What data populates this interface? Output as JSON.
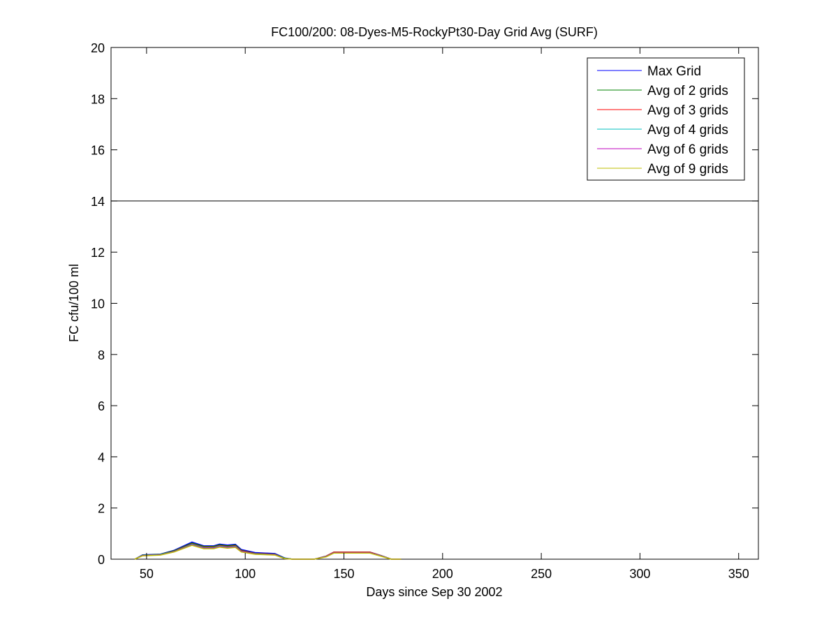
{
  "chart_data": {
    "type": "line",
    "title": "FC100/200: 08-Dyes-M5-RockyPt30-Day Grid Avg (SURF)",
    "xlabel": "Days since Sep 30 2002",
    "ylabel": "FC cfu/100 ml",
    "xlim": [
      32,
      360
    ],
    "ylim": [
      0,
      20
    ],
    "xticks": [
      50,
      100,
      150,
      200,
      250,
      300,
      350
    ],
    "yticks": [
      0,
      2,
      4,
      6,
      8,
      10,
      12,
      14,
      16,
      18,
      20
    ],
    "grid": false,
    "legend_position": "top-right",
    "reference_line": {
      "y": 14,
      "color": "#000000"
    },
    "x": [
      44,
      48,
      57,
      64,
      73,
      79,
      84,
      87,
      91,
      95,
      98,
      105,
      115,
      120,
      124,
      135,
      141,
      145,
      163,
      169,
      174,
      179
    ],
    "series": [
      {
        "name": "Max Grid",
        "color": "#0000ff",
        "values": [
          0,
          0.17,
          0.2,
          0.35,
          0.67,
          0.52,
          0.52,
          0.59,
          0.55,
          0.58,
          0.38,
          0.26,
          0.22,
          0.05,
          0,
          0,
          0.12,
          0.28,
          0.28,
          0.14,
          0,
          0
        ]
      },
      {
        "name": "Avg of 2 grids",
        "color": "#008000",
        "values": [
          0,
          0.16,
          0.19,
          0.33,
          0.63,
          0.5,
          0.5,
          0.56,
          0.52,
          0.55,
          0.35,
          0.23,
          0.2,
          0.04,
          0,
          0,
          0.12,
          0.28,
          0.28,
          0.14,
          0,
          0
        ]
      },
      {
        "name": "Avg of 3 grids",
        "color": "#ff0000",
        "values": [
          0,
          0.15,
          0.18,
          0.31,
          0.6,
          0.47,
          0.47,
          0.53,
          0.49,
          0.52,
          0.33,
          0.22,
          0.19,
          0.03,
          0,
          0,
          0.12,
          0.28,
          0.28,
          0.14,
          0,
          0
        ]
      },
      {
        "name": "Avg of 4 grids",
        "color": "#00bfbf",
        "values": [
          0,
          0.15,
          0.18,
          0.3,
          0.58,
          0.45,
          0.45,
          0.51,
          0.47,
          0.5,
          0.31,
          0.21,
          0.18,
          0.03,
          0,
          0,
          0.11,
          0.26,
          0.26,
          0.13,
          0,
          0
        ]
      },
      {
        "name": "Avg of 6 grids",
        "color": "#bf00bf",
        "values": [
          0,
          0.14,
          0.17,
          0.29,
          0.56,
          0.43,
          0.43,
          0.49,
          0.45,
          0.48,
          0.3,
          0.2,
          0.17,
          0.02,
          0,
          0,
          0.1,
          0.25,
          0.25,
          0.12,
          0,
          0
        ]
      },
      {
        "name": "Avg of 9 grids",
        "color": "#bfbf00",
        "values": [
          0,
          0.13,
          0.16,
          0.28,
          0.54,
          0.41,
          0.41,
          0.47,
          0.43,
          0.46,
          0.28,
          0.19,
          0.16,
          0.02,
          0,
          0,
          0.09,
          0.24,
          0.24,
          0.11,
          0,
          0
        ]
      }
    ]
  }
}
